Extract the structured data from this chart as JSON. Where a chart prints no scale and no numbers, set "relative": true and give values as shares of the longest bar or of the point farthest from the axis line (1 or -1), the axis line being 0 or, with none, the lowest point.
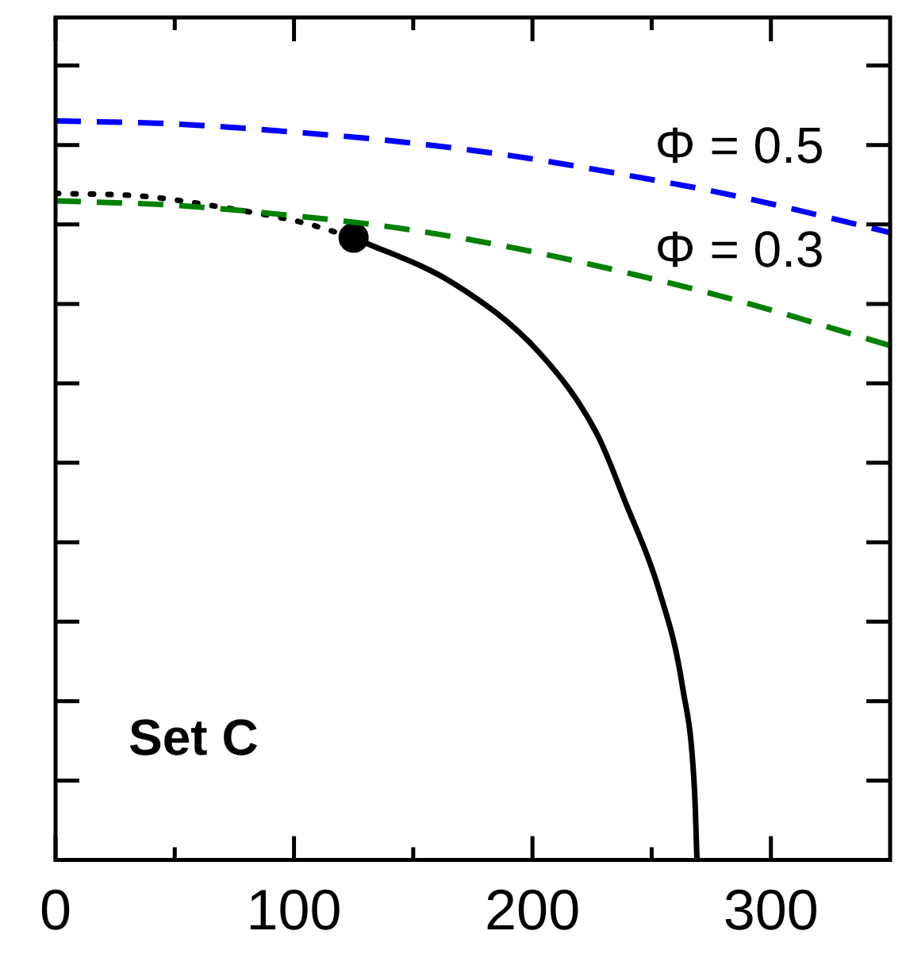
{
  "chart_data": {
    "type": "line",
    "relative": true,
    "xlim": [
      0,
      350
    ],
    "xticks": [
      0,
      {
        "value": 50,
        "label": null
      },
      100,
      {
        "value": 150,
        "label": null
      },
      200,
      {
        "value": 250,
        "label": null
      },
      300
    ],
    "tick_labels": "x",
    "legend": false,
    "grid": false,
    "annotations": [
      "Set C"
    ],
    "series": [
      {
        "name": "Φ = 0.5",
        "color": "#0000ff",
        "line_style": "dashed",
        "x": [
          0,
          49,
          96,
          144,
          191,
          239,
          286,
          350
        ],
        "values": [
          1.0,
          0.996,
          0.986,
          0.972,
          0.953,
          0.927,
          0.898,
          0.849
        ]
      },
      {
        "name": "Φ = 0.3",
        "color": "#008000",
        "line_style": "dashed",
        "x": [
          0,
          49,
          96,
          144,
          191,
          239,
          286,
          350
        ],
        "values": [
          0.892,
          0.886,
          0.873,
          0.855,
          0.829,
          0.795,
          0.757,
          0.696
        ]
      },
      {
        "color": "#000000",
        "line_style": "dotted",
        "x": [
          0,
          37,
          72,
          103,
          125
        ],
        "values": [
          0.902,
          0.898,
          0.882,
          0.863,
          0.842
        ]
      },
      {
        "color": "#000000",
        "line_style": "solid",
        "x": [
          125,
          167,
          203,
          227,
          239,
          253,
          263,
          268,
          269
        ],
        "values": [
          0.842,
          0.78,
          0.686,
          0.577,
          0.484,
          0.366,
          0.233,
          0.092,
          0
        ]
      },
      {
        "type": "scatter",
        "color": "#000000",
        "marker": "circle",
        "x": [
          125
        ],
        "values": [
          0.842
        ]
      }
    ]
  }
}
